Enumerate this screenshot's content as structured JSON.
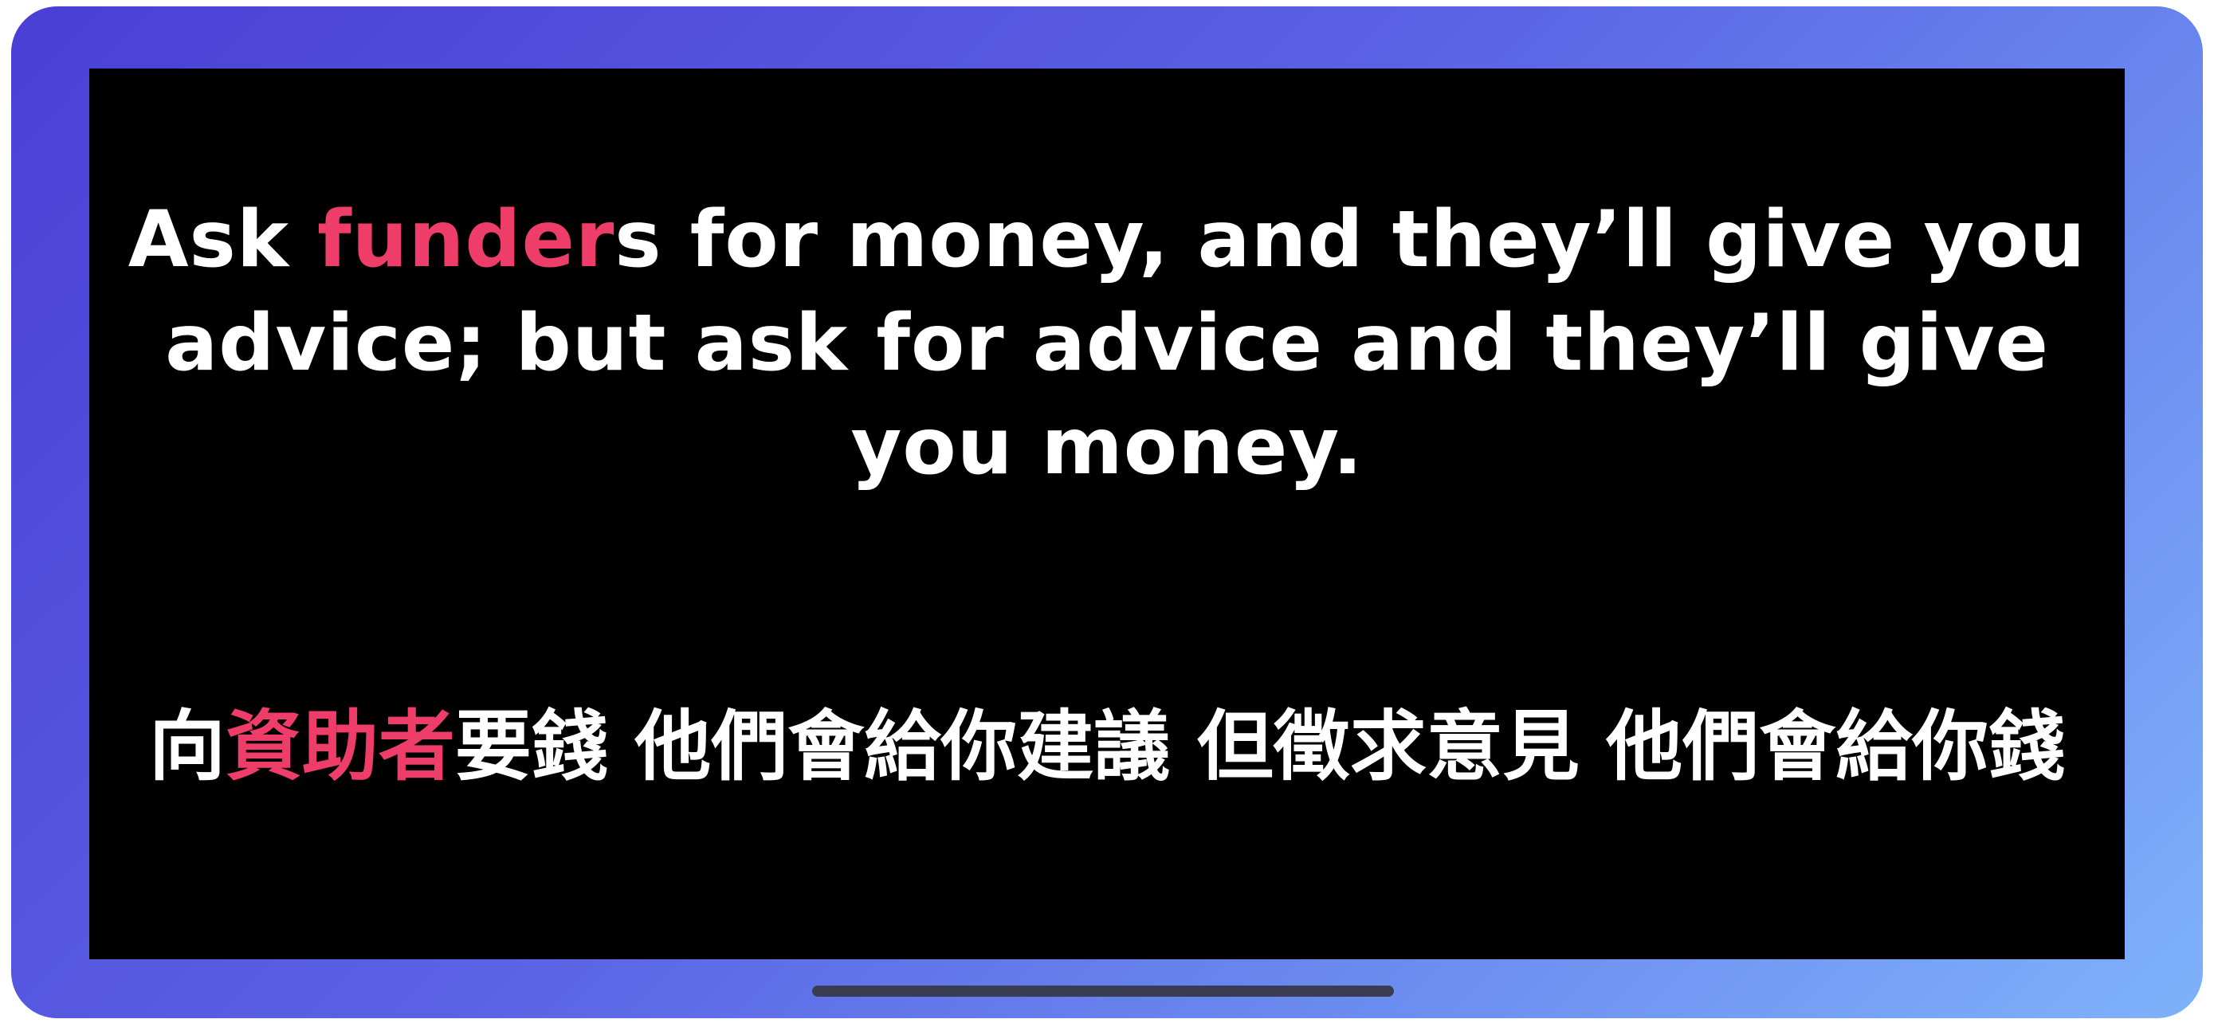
{
  "quote_en": {
    "before": "Ask ",
    "highlight": "funder",
    "after": "s for money, and they’ll give you advice; but ask for advice and they’ll give you money."
  },
  "quote_zh": {
    "before": "向",
    "highlight": "資助者",
    "after": "要錢 他們會給你建議 但徵求意見 他們會給你錢"
  },
  "colors": {
    "highlight": "#ee3d68",
    "text": "#ffffff",
    "screen_background": "#000000",
    "frame_gradient_start": "#4a3fd6",
    "frame_gradient_end": "#7fb2fb"
  }
}
